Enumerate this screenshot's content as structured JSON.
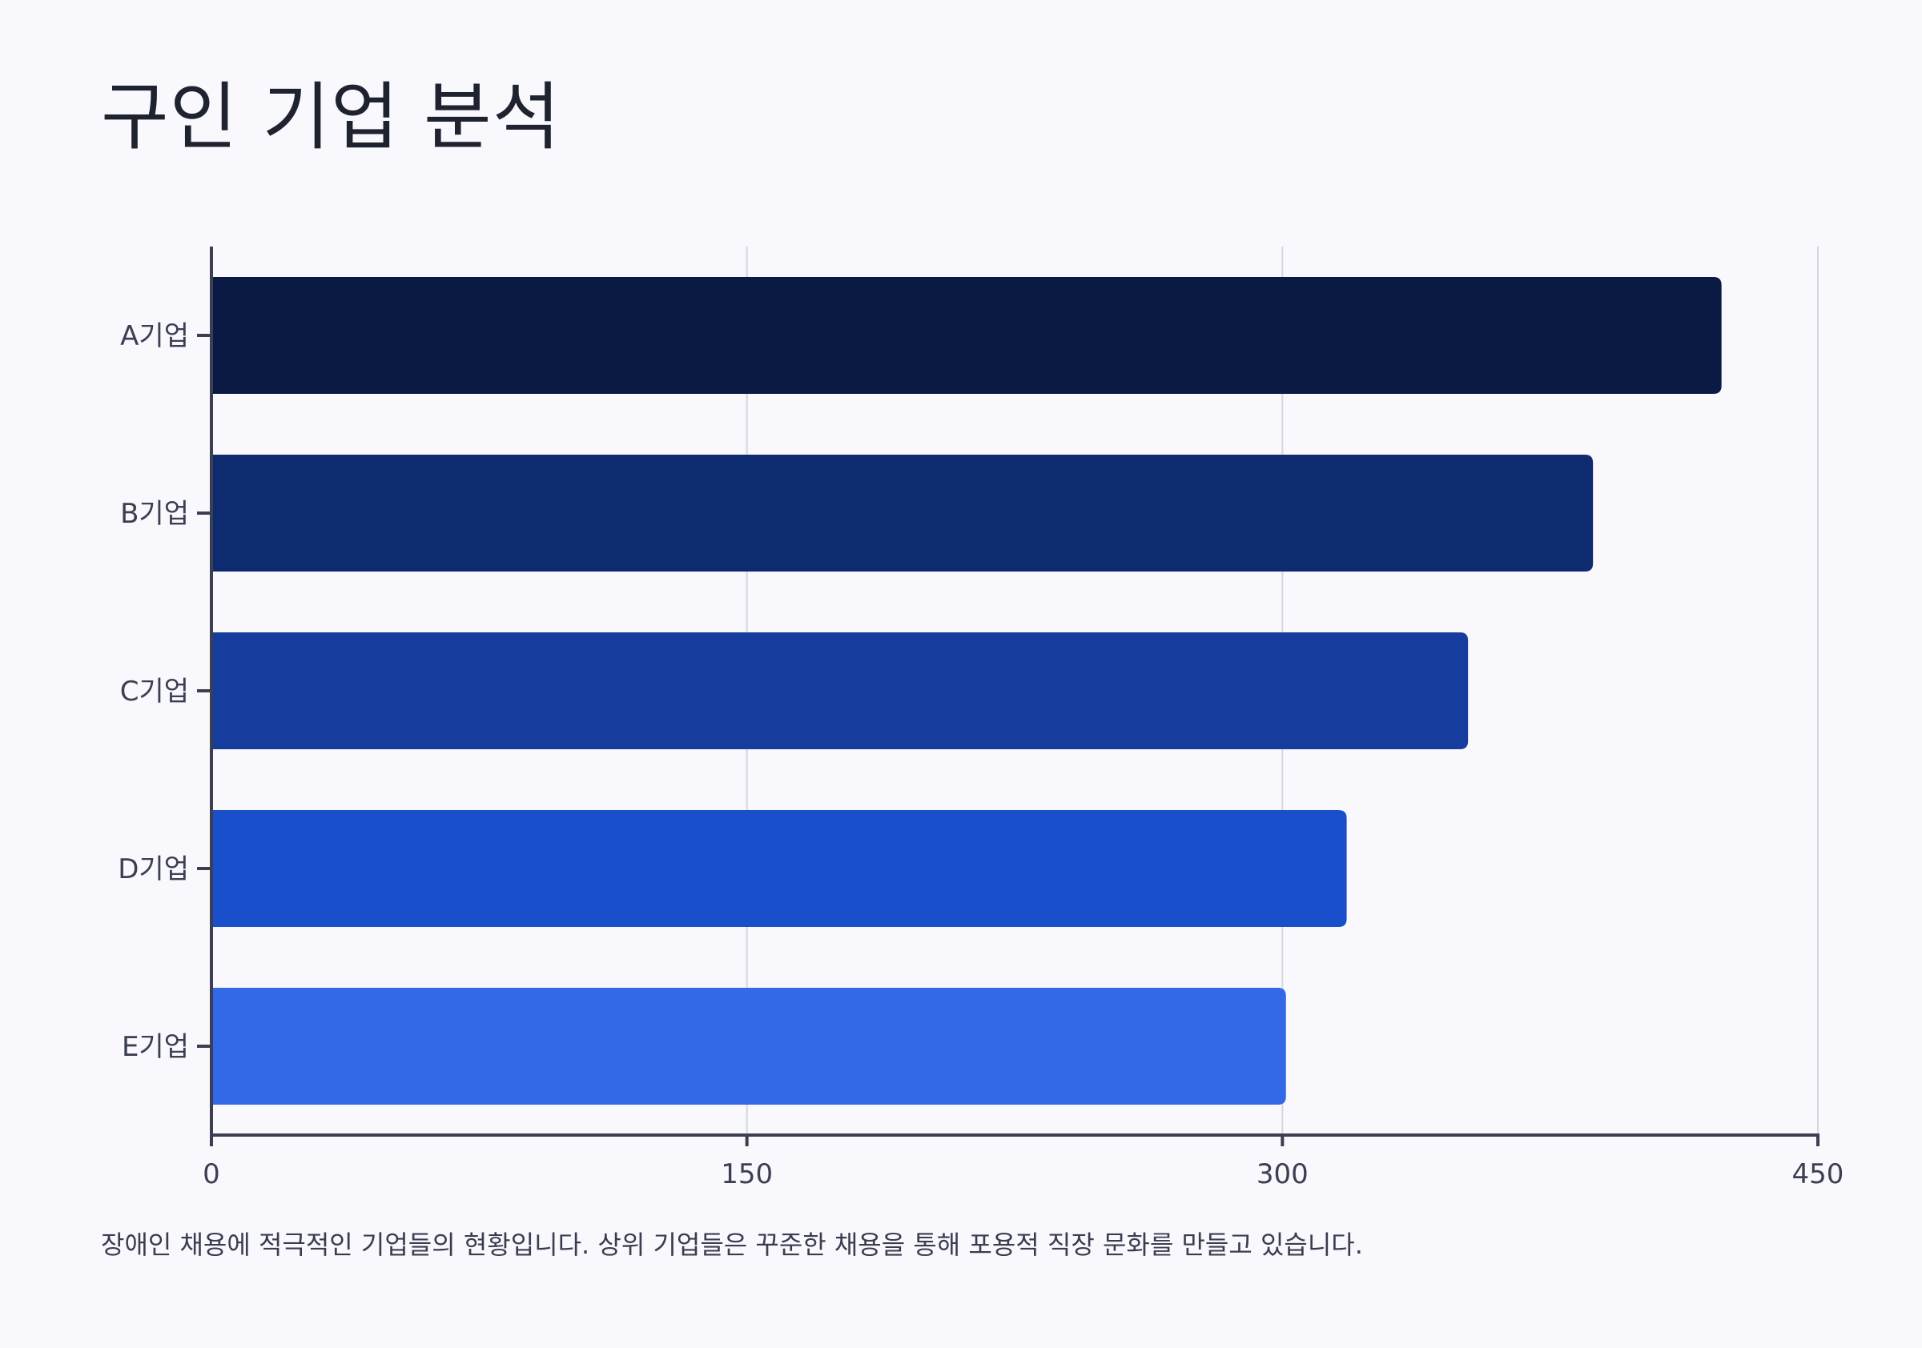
{
  "chart_data": {
    "type": "bar",
    "orientation": "horizontal",
    "title": "구인 기업 분석",
    "caption": "장애인 채용에 적극적인 기업들의 현황입니다. 상위 기업들은 꾸준한 채용을 통해 포용적 직장 문화를 만들고 있습니다.",
    "categories": [
      "A기업",
      "B기업",
      "C기업",
      "D기업",
      "E기업"
    ],
    "values": [
      423,
      387,
      352,
      318,
      301
    ],
    "colors": [
      "#0a1a44",
      "#0f2b70",
      "#163c9e",
      "#1a4fcc",
      "#3369e6"
    ],
    "xlim": [
      0,
      450
    ],
    "xticks": [
      "0",
      "150",
      "300",
      "450"
    ],
    "grid": true,
    "legend": "none"
  }
}
